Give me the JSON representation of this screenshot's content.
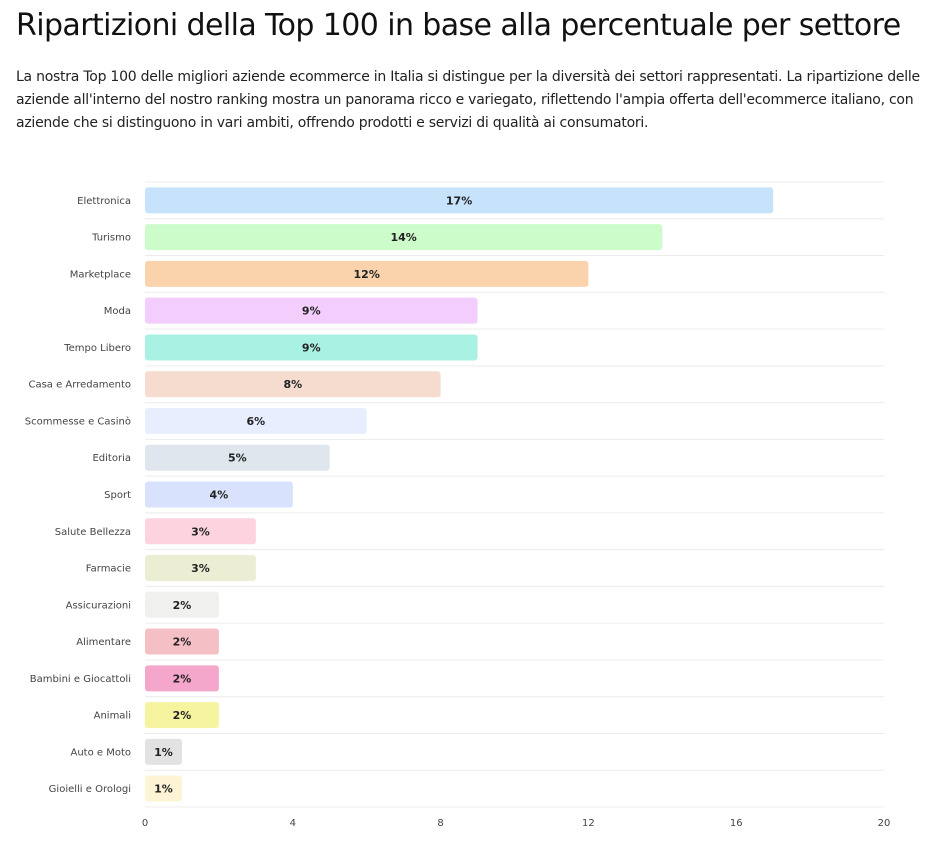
{
  "page": {
    "title": "Ripartizioni della Top 100 in base alla percentuale per settore",
    "intro": "La nostra Top 100 delle migliori aziende ecommerce in Italia si distingue per la diversità dei settori rappresentati. La ripartizione delle aziende all'interno del nostro ranking mostra un panorama ricco e variegato, riflettendo l'ampia offerta dell'ecommerce italiano, con aziende che si distinguono in vari ambiti, offrendo prodotti e servizi di qualità ai consumatori."
  },
  "chart_data": {
    "type": "bar",
    "orientation": "horizontal",
    "title": "",
    "xlabel": "",
    "ylabel": "",
    "categories": [
      "Elettronica",
      "Turismo",
      "Marketplace",
      "Moda",
      "Tempo Libero",
      "Casa e Arredamento",
      "Scommesse e Casinò",
      "Editoria",
      "Sport",
      "Salute Bellezza",
      "Farmacie",
      "Assicurazioni",
      "Alimentare",
      "Bambini e Giocattoli",
      "Animali",
      "Auto e Moto",
      "Gioielli e Orologi"
    ],
    "values": [
      17,
      14,
      12,
      9,
      9,
      8,
      6,
      5,
      4,
      3,
      3,
      2,
      2,
      2,
      2,
      1,
      1
    ],
    "data_labels": [
      "17%",
      "14%",
      "12%",
      "9%",
      "9%",
      "8%",
      "6%",
      "5%",
      "4%",
      "3%",
      "3%",
      "2%",
      "2%",
      "2%",
      "2%",
      "1%",
      "1%"
    ],
    "colors": [
      "#c7e3fb",
      "#cdfccb",
      "#fad3ad",
      "#f3cdfb",
      "#a9f1e2",
      "#f6dccf",
      "#e8eefd",
      "#dfe6ee",
      "#d9e2fc",
      "#fdd3df",
      "#ebeed3",
      "#f0f0ee",
      "#f5bfc6",
      "#f4a6cb",
      "#f6f49f",
      "#e2e2e2",
      "#fdf4d6"
    ],
    "xlim": [
      0,
      20
    ],
    "x_ticks": [
      0,
      4,
      8,
      12,
      16,
      20
    ],
    "grid": true,
    "legend": "none"
  }
}
